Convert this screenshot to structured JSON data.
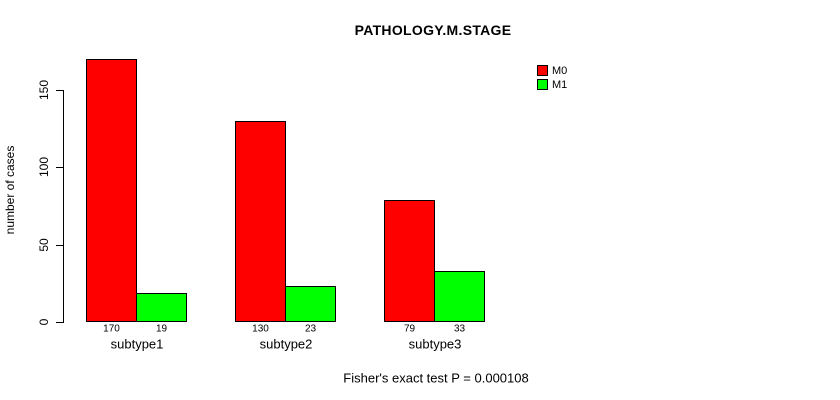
{
  "chart_data": {
    "type": "bar",
    "title": "PATHOLOGY.M.STAGE",
    "ylabel": "number of cases",
    "xlabel": "",
    "categories": [
      "subtype1",
      "subtype2",
      "subtype3"
    ],
    "series": [
      {
        "name": "M0",
        "color": "#ff0000",
        "values": [
          170,
          130,
          79
        ]
      },
      {
        "name": "M1",
        "color": "#00ff00",
        "values": [
          19,
          23,
          33
        ]
      }
    ],
    "show_bar_values": true,
    "yticks": [
      0,
      50,
      100,
      150
    ],
    "ylim": [
      0,
      175
    ],
    "grid": false,
    "legend": {
      "position": "top-right",
      "entries": [
        "M0",
        "M1"
      ]
    },
    "footer": "Fisher's exact test P = 0.000108"
  }
}
